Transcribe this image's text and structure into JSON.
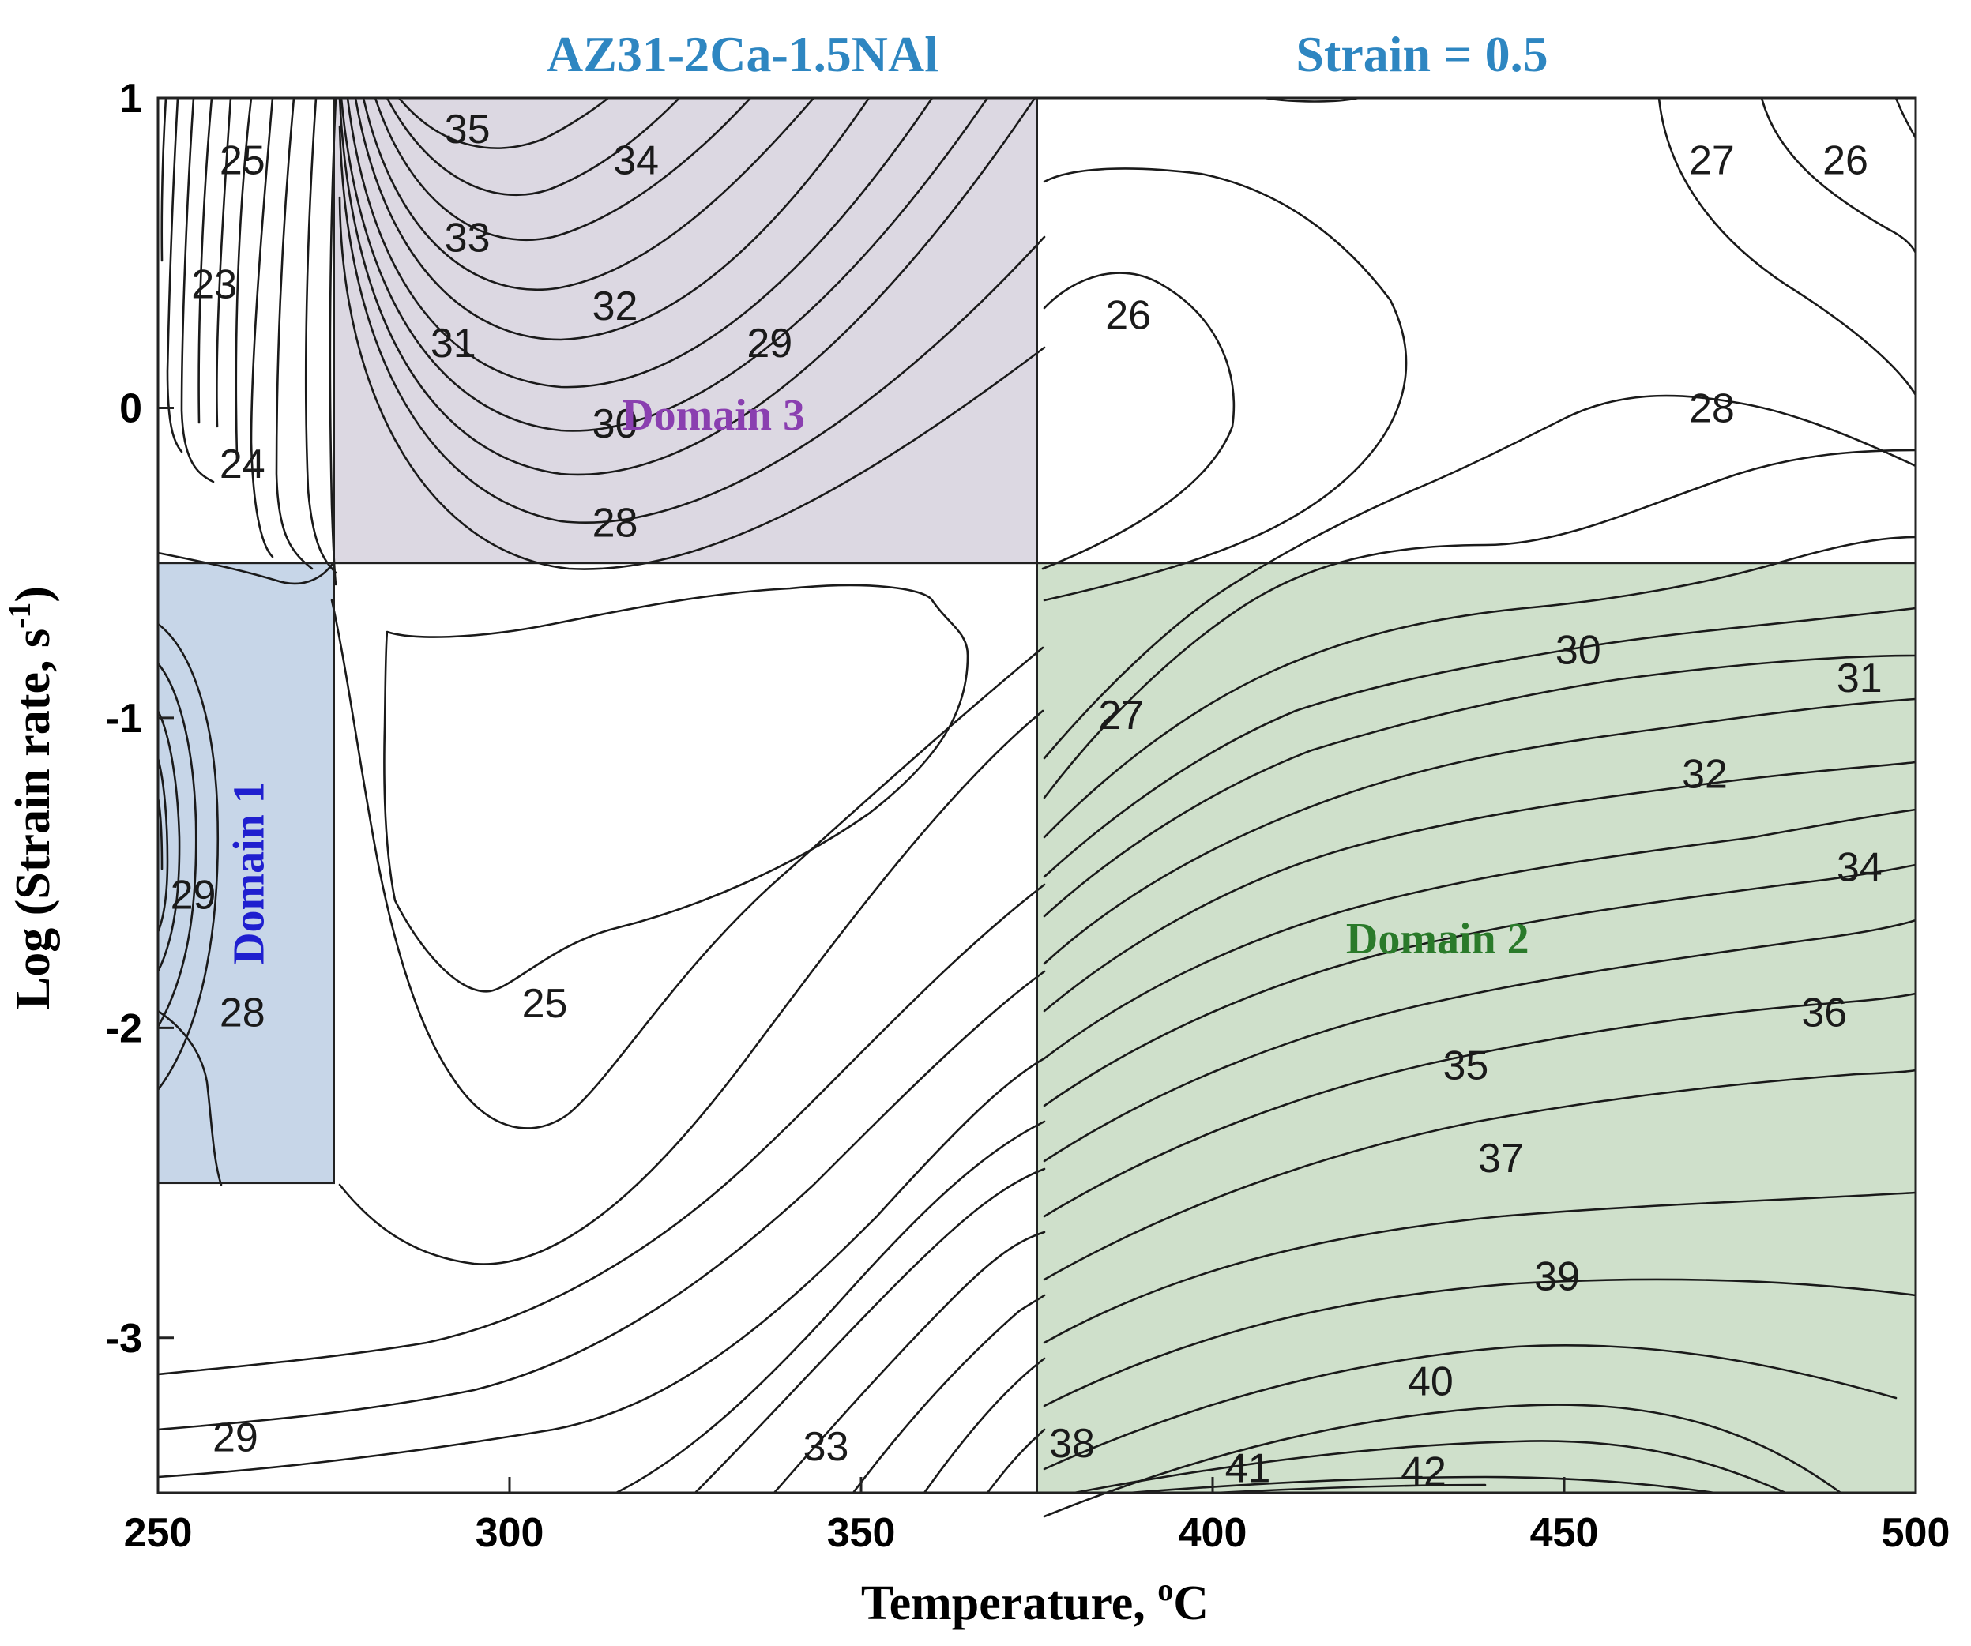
{
  "chart_data": {
    "type": "contour",
    "title_left": "AZ31-2Ca-1.5NAl",
    "title_right": "Strain = 0.5",
    "xlabel": "Temperature, ",
    "xlabel_sup": "o",
    "xlabel_unit": "C",
    "ylabel": "Log (Strain rate, s",
    "ylabel_sup": "-1",
    "ylabel_end": ")",
    "xlim": [
      250,
      500
    ],
    "ylim": [
      -3.5,
      1
    ],
    "x_ticks": [
      {
        "value": 250,
        "label": "250"
      },
      {
        "value": 300,
        "label": "300"
      },
      {
        "value": 350,
        "label": "350"
      },
      {
        "value": 400,
        "label": "400"
      },
      {
        "value": 450,
        "label": "450"
      },
      {
        "value": 500,
        "label": "500"
      }
    ],
    "y_ticks": [
      {
        "value": 1,
        "label": "1"
      },
      {
        "value": 0,
        "label": "0"
      },
      {
        "value": -1,
        "label": "-1"
      },
      {
        "value": -2,
        "label": "-2"
      },
      {
        "value": -3,
        "label": "-3"
      }
    ],
    "domains": [
      {
        "name": "Domain 1",
        "x_range": [
          250,
          275
        ],
        "y_range": [
          -2.5,
          -0.5
        ],
        "fill": "#c7d6e8",
        "label_color": "#1f1fcf"
      },
      {
        "name": "Domain 2",
        "x_range": [
          375,
          500
        ],
        "y_range": [
          -3.5,
          -0.5
        ],
        "fill": "#cfe0cb",
        "label_color": "#2a7a2a"
      },
      {
        "name": "Domain 3",
        "x_range": [
          275,
          375
        ],
        "y_range": [
          -0.5,
          1
        ],
        "fill": "#dcd8e2",
        "label_color": "#8a3fb0"
      }
    ],
    "contour_labels": [
      {
        "value": "25",
        "x": 262,
        "y": 0.8
      },
      {
        "value": "23",
        "x": 258,
        "y": 0.4
      },
      {
        "value": "24",
        "x": 262,
        "y": -0.18
      },
      {
        "value": "35",
        "x": 294,
        "y": 0.9
      },
      {
        "value": "34",
        "x": 318,
        "y": 0.8
      },
      {
        "value": "33",
        "x": 294,
        "y": 0.55
      },
      {
        "value": "32",
        "x": 315,
        "y": 0.33
      },
      {
        "value": "31",
        "x": 292,
        "y": 0.21
      },
      {
        "value": "29",
        "x": 337,
        "y": 0.21
      },
      {
        "value": "30",
        "x": 315,
        "y": -0.05
      },
      {
        "value": "28",
        "x": 315,
        "y": -0.37
      },
      {
        "value": "26",
        "x": 388,
        "y": 0.3
      },
      {
        "value": "27",
        "x": 471,
        "y": 0.8
      },
      {
        "value": "26",
        "x": 490,
        "y": 0.8
      },
      {
        "value": "28",
        "x": 471,
        "y": 0.0
      },
      {
        "value": "30",
        "x": 452,
        "y": -0.78
      },
      {
        "value": "31",
        "x": 492,
        "y": -0.87
      },
      {
        "value": "32",
        "x": 470,
        "y": -1.18
      },
      {
        "value": "34",
        "x": 492,
        "y": -1.48
      },
      {
        "value": "36",
        "x": 487,
        "y": -1.95
      },
      {
        "value": "35",
        "x": 436,
        "y": -2.12
      },
      {
        "value": "37",
        "x": 441,
        "y": -2.42
      },
      {
        "value": "39",
        "x": 449,
        "y": -2.8
      },
      {
        "value": "40",
        "x": 431,
        "y": -3.14
      },
      {
        "value": "42",
        "x": 430,
        "y": -3.43
      },
      {
        "value": "41",
        "x": 405,
        "y": -3.42
      },
      {
        "value": "38",
        "x": 380,
        "y": -3.34
      },
      {
        "value": "33",
        "x": 345,
        "y": -3.35
      },
      {
        "value": "29",
        "x": 261,
        "y": -3.32
      },
      {
        "value": "27",
        "x": 387,
        "y": -0.99
      },
      {
        "value": "25",
        "x": 305,
        "y": -1.92
      },
      {
        "value": "29",
        "x": 255,
        "y": -1.57
      },
      {
        "value": "28",
        "x": 262,
        "y": -1.95
      }
    ]
  }
}
